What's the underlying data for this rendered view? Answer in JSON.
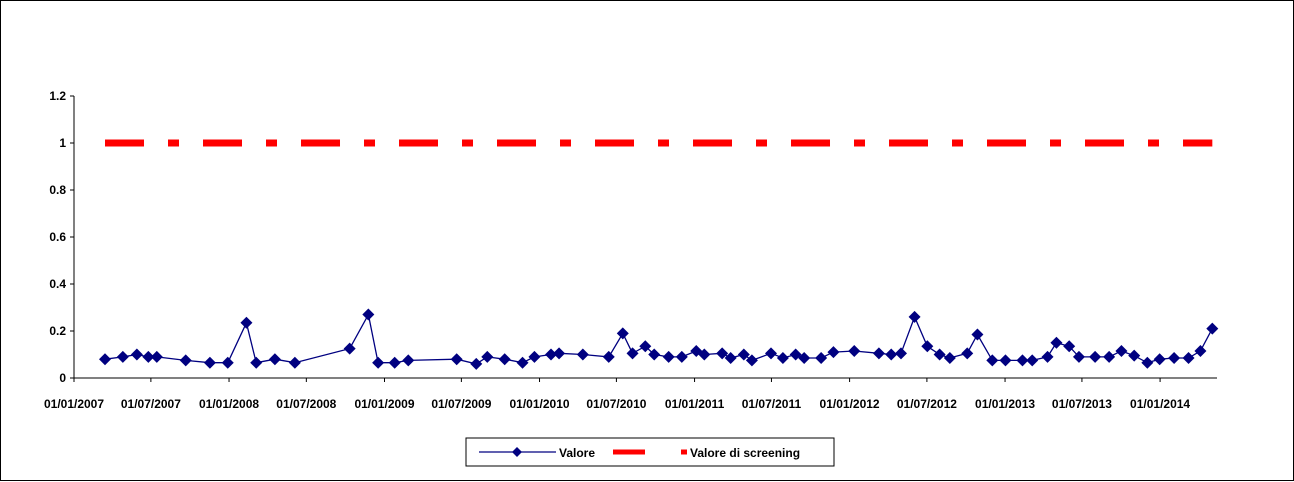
{
  "chart_data": {
    "type": "line",
    "title": "",
    "xlabel": "",
    "ylabel": "",
    "x_axis_type": "date",
    "xlim": [
      "2007-01-01",
      "2014-05-15"
    ],
    "ylim": [
      0,
      1.2
    ],
    "y_ticks": [
      "0",
      "0.2",
      "0.4",
      "0.6",
      "0.8",
      "1",
      "1.2"
    ],
    "x_ticks": [
      {
        "date": "2007-01-01",
        "label": "01/01/2007"
      },
      {
        "date": "2007-07-01",
        "label": "01/07/2007"
      },
      {
        "date": "2008-01-01",
        "label": "01/01/2008"
      },
      {
        "date": "2008-07-01",
        "label": "01/07/2008"
      },
      {
        "date": "2009-01-01",
        "label": "01/01/2009"
      },
      {
        "date": "2009-07-01",
        "label": "01/07/2009"
      },
      {
        "date": "2010-01-01",
        "label": "01/01/2010"
      },
      {
        "date": "2010-07-01",
        "label": "01/07/2010"
      },
      {
        "date": "2011-01-01",
        "label": "01/01/2011"
      },
      {
        "date": "2011-07-01",
        "label": "01/07/2011"
      },
      {
        "date": "2012-01-01",
        "label": "01/01/2012"
      },
      {
        "date": "2012-07-01",
        "label": "01/07/2012"
      },
      {
        "date": "2013-01-01",
        "label": "01/01/2013"
      },
      {
        "date": "2013-07-01",
        "label": "01/07/2013"
      },
      {
        "date": "2014-01-01",
        "label": "01/01/2014"
      }
    ],
    "grid": false,
    "legend_position": "bottom",
    "series": [
      {
        "name": "Valore",
        "color": "#000080",
        "marker": "diamond",
        "points": [
          [
            "2007-03-15",
            0.08
          ],
          [
            "2007-04-26",
            0.09
          ],
          [
            "2007-05-29",
            0.1
          ],
          [
            "2007-06-25",
            0.09
          ],
          [
            "2007-07-15",
            0.09
          ],
          [
            "2007-09-21",
            0.075
          ],
          [
            "2007-11-17",
            0.065
          ],
          [
            "2007-12-29",
            0.065
          ],
          [
            "2008-02-11",
            0.235
          ],
          [
            "2008-03-05",
            0.065
          ],
          [
            "2008-04-18",
            0.08
          ],
          [
            "2008-06-04",
            0.065
          ],
          [
            "2008-10-11",
            0.125
          ],
          [
            "2008-11-24",
            0.27
          ],
          [
            "2008-12-17",
            0.065
          ],
          [
            "2009-01-25",
            0.065
          ],
          [
            "2009-02-26",
            0.075
          ],
          [
            "2009-06-20",
            0.08
          ],
          [
            "2009-08-05",
            0.06
          ],
          [
            "2009-08-31",
            0.09
          ],
          [
            "2009-10-11",
            0.08
          ],
          [
            "2009-11-22",
            0.065
          ],
          [
            "2009-12-20",
            0.09
          ],
          [
            "2010-01-28",
            0.1
          ],
          [
            "2010-02-16",
            0.105
          ],
          [
            "2010-04-13",
            0.1
          ],
          [
            "2010-06-13",
            0.09
          ],
          [
            "2010-07-16",
            0.19
          ],
          [
            "2010-08-08",
            0.105
          ],
          [
            "2010-09-07",
            0.135
          ],
          [
            "2010-09-28",
            0.1
          ],
          [
            "2010-11-01",
            0.09
          ],
          [
            "2010-12-02",
            0.09
          ],
          [
            "2011-01-05",
            0.115
          ],
          [
            "2011-01-24",
            0.1
          ],
          [
            "2011-03-07",
            0.105
          ],
          [
            "2011-03-27",
            0.085
          ],
          [
            "2011-04-27",
            0.1
          ],
          [
            "2011-05-16",
            0.075
          ],
          [
            "2011-06-30",
            0.105
          ],
          [
            "2011-07-28",
            0.085
          ],
          [
            "2011-08-27",
            0.1
          ],
          [
            "2011-09-16",
            0.085
          ],
          [
            "2011-10-26",
            0.085
          ],
          [
            "2011-11-24",
            0.11
          ],
          [
            "2012-01-12",
            0.115
          ],
          [
            "2012-03-10",
            0.105
          ],
          [
            "2012-04-08",
            0.1
          ],
          [
            "2012-05-01",
            0.105
          ],
          [
            "2012-06-02",
            0.26
          ],
          [
            "2012-07-02",
            0.135
          ],
          [
            "2012-07-31",
            0.1
          ],
          [
            "2012-08-24",
            0.085
          ],
          [
            "2012-10-04",
            0.105
          ],
          [
            "2012-10-28",
            0.185
          ],
          [
            "2012-12-02",
            0.075
          ],
          [
            "2013-01-02",
            0.075
          ],
          [
            "2013-02-11",
            0.075
          ],
          [
            "2013-03-06",
            0.075
          ],
          [
            "2013-04-11",
            0.09
          ],
          [
            "2013-05-02",
            0.15
          ],
          [
            "2013-06-01",
            0.135
          ],
          [
            "2013-06-24",
            0.09
          ],
          [
            "2013-08-01",
            0.09
          ],
          [
            "2013-09-03",
            0.09
          ],
          [
            "2013-10-02",
            0.115
          ],
          [
            "2013-11-01",
            0.095
          ],
          [
            "2013-12-02",
            0.065
          ],
          [
            "2013-12-31",
            0.08
          ],
          [
            "2014-02-03",
            0.085
          ],
          [
            "2014-03-09",
            0.085
          ],
          [
            "2014-04-06",
            0.115
          ],
          [
            "2014-05-04",
            0.21
          ]
        ]
      },
      {
        "name": "Valore di screening",
        "color": "#ff0000",
        "style": "dash-dot",
        "points": [
          [
            "2007-03-15",
            1
          ],
          [
            "2014-05-04",
            1
          ]
        ]
      }
    ]
  }
}
